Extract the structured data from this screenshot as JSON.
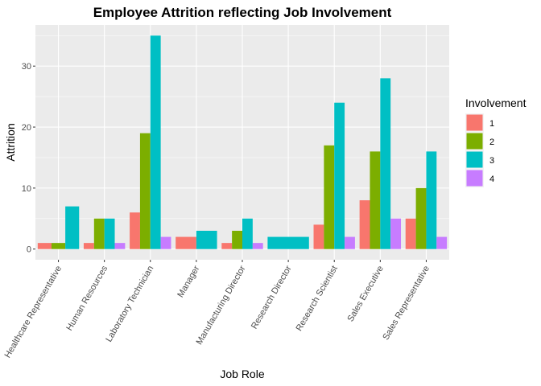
{
  "chart_data": {
    "type": "bar",
    "title": "Employee Attrition reflecting Job Involvement",
    "xlabel": "Job Role",
    "ylabel": "Attrition",
    "categories": [
      "Healthcare Representative",
      "Human Resources",
      "Laboratory Technician",
      "Manager",
      "Manufacturing Director",
      "Research Director",
      "Research Scientist",
      "Sales Executive",
      "Sales Representative"
    ],
    "series": [
      {
        "name": "1",
        "color": "#F8766D",
        "values": [
          1,
          1,
          6,
          2,
          1,
          null,
          4,
          8,
          5
        ]
      },
      {
        "name": "2",
        "color": "#7CAE00",
        "values": [
          1,
          5,
          19,
          null,
          3,
          null,
          17,
          16,
          10
        ]
      },
      {
        "name": "3",
        "color": "#00BFC4",
        "values": [
          7,
          5,
          35,
          3,
          5,
          2,
          24,
          28,
          16
        ]
      },
      {
        "name": "4",
        "color": "#C77CFF",
        "values": [
          null,
          1,
          2,
          null,
          1,
          null,
          2,
          5,
          2
        ]
      }
    ],
    "ylim": [
      -1.75,
      36.75
    ],
    "yticks": [
      0,
      10,
      20,
      30
    ],
    "grid": true,
    "legend": {
      "title": "Involvement",
      "position": "right"
    }
  }
}
